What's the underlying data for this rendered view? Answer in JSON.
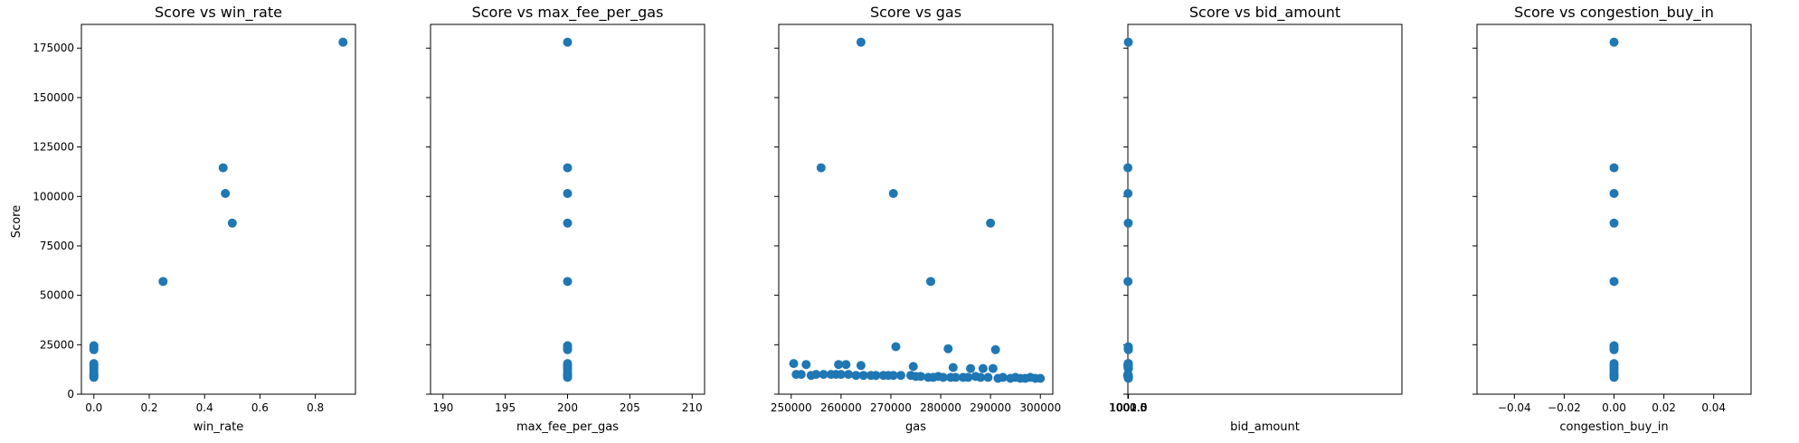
{
  "color": "#1f77b4",
  "ylabel": "Score",
  "yticks": [
    0,
    25000,
    50000,
    75000,
    100000,
    125000,
    150000,
    175000
  ],
  "chart_data": [
    {
      "type": "scatter",
      "title": "Score vs win_rate",
      "xlabel": "win_rate",
      "ylabel": "Score",
      "xlim": [
        -0.045,
        0.945
      ],
      "ylim": [
        0,
        187000
      ],
      "xticks": [
        0.0,
        0.2,
        0.4,
        0.6,
        0.8
      ],
      "xtick_labels": [
        "0.0",
        "0.2",
        "0.4",
        "0.6",
        "0.8"
      ],
      "points": [
        [
          0.9,
          178000
        ],
        [
          0.467,
          114500
        ],
        [
          0.475,
          101500
        ],
        [
          0.5,
          86500
        ],
        [
          0.25,
          57000
        ],
        [
          0.0,
          24500
        ],
        [
          0.0,
          23500
        ],
        [
          0.0,
          22500
        ],
        [
          0.0,
          15500
        ],
        [
          0.0,
          14500
        ],
        [
          0.0,
          13500
        ],
        [
          0.0,
          12500
        ],
        [
          0.0,
          11000
        ],
        [
          0.0,
          10000
        ],
        [
          0.0,
          9500
        ],
        [
          0.0,
          9000
        ],
        [
          0.0,
          8500
        ]
      ]
    },
    {
      "type": "scatter",
      "title": "Score vs max_fee_per_gas",
      "xlabel": "max_fee_per_gas",
      "ylabel": "",
      "xlim": [
        189,
        211
      ],
      "ylim": [
        0,
        187000
      ],
      "xticks": [
        190,
        195,
        200,
        205,
        210
      ],
      "xtick_labels": [
        "190",
        "195",
        "200",
        "205",
        "210"
      ],
      "points": [
        [
          200,
          178000
        ],
        [
          200,
          114500
        ],
        [
          200,
          101500
        ],
        [
          200,
          86500
        ],
        [
          200,
          57000
        ],
        [
          200,
          24500
        ],
        [
          200,
          23500
        ],
        [
          200,
          22500
        ],
        [
          200,
          15500
        ],
        [
          200,
          14500
        ],
        [
          200,
          13500
        ],
        [
          200,
          12500
        ],
        [
          200,
          11000
        ],
        [
          200,
          10000
        ],
        [
          200,
          9500
        ],
        [
          200,
          9000
        ],
        [
          200,
          8500
        ]
      ]
    },
    {
      "type": "scatter",
      "title": "Score vs gas",
      "xlabel": "gas",
      "ylabel": "",
      "xlim": [
        247500,
        302500
      ],
      "ylim": [
        0,
        187000
      ],
      "xticks": [
        250000,
        260000,
        270000,
        280000,
        290000,
        300000
      ],
      "xtick_labels": [
        "250000",
        "260000",
        "270000",
        "280000",
        "290000",
        "300000"
      ],
      "points": [
        [
          264000,
          178000
        ],
        [
          256000,
          114500
        ],
        [
          270500,
          101500
        ],
        [
          290000,
          86500
        ],
        [
          278000,
          57000
        ],
        [
          271000,
          24000
        ],
        [
          281500,
          23000
        ],
        [
          291000,
          22500
        ],
        [
          250500,
          15500
        ],
        [
          253000,
          15000
        ],
        [
          259500,
          15000
        ],
        [
          261000,
          15000
        ],
        [
          264000,
          14500
        ],
        [
          274500,
          14000
        ],
        [
          282500,
          13500
        ],
        [
          286000,
          13000
        ],
        [
          288500,
          13000
        ],
        [
          290500,
          13000
        ],
        [
          251000,
          10000
        ],
        [
          252000,
          10000
        ],
        [
          254000,
          9500
        ],
        [
          255000,
          10000
        ],
        [
          256500,
          10000
        ],
        [
          258000,
          10000
        ],
        [
          259000,
          10000
        ],
        [
          260000,
          10000
        ],
        [
          261500,
          10000
        ],
        [
          263000,
          9500
        ],
        [
          264500,
          9500
        ],
        [
          266000,
          9500
        ],
        [
          267000,
          9500
        ],
        [
          268500,
          9500
        ],
        [
          269500,
          9500
        ],
        [
          270500,
          9500
        ],
        [
          272000,
          9500
        ],
        [
          274000,
          9500
        ],
        [
          275000,
          9000
        ],
        [
          276000,
          9000
        ],
        [
          277500,
          8500
        ],
        [
          278500,
          8500
        ],
        [
          279500,
          9000
        ],
        [
          280500,
          8500
        ],
        [
          282000,
          8500
        ],
        [
          283000,
          8500
        ],
        [
          284500,
          8500
        ],
        [
          285500,
          8500
        ],
        [
          287000,
          9000
        ],
        [
          288000,
          8500
        ],
        [
          289500,
          8500
        ],
        [
          291500,
          8000
        ],
        [
          292500,
          8500
        ],
        [
          294000,
          8000
        ],
        [
          295000,
          8500
        ],
        [
          296000,
          8000
        ],
        [
          297000,
          8000
        ],
        [
          298000,
          8500
        ],
        [
          299000,
          8000
        ],
        [
          300000,
          8000
        ]
      ]
    },
    {
      "type": "scatter",
      "title": "Score vs bid_amount",
      "xlabel": "bid_amount",
      "ylabel": "",
      "xlim": [
        999.9,
        2002.1
      ],
      "ylim": [
        0,
        187000
      ],
      "xticks": [
        1000.0,
        1000.5,
        1001.0,
        1001.5,
        1002.0
      ],
      "xtick_labels": [
        "1000.0",
        "1000.5",
        "1001.0",
        "1001.5",
        "1002.0"
      ],
      "points": [
        [
          1001.58,
          178000
        ],
        [
          1000.03,
          114500
        ],
        [
          1000.52,
          101500
        ],
        [
          1001.18,
          86500
        ],
        [
          1000.32,
          57000
        ],
        [
          1001.43,
          24000
        ],
        [
          1001.68,
          23500
        ],
        [
          1001.25,
          23000
        ],
        [
          1001.7,
          22500
        ],
        [
          1000.04,
          14500
        ],
        [
          1000.08,
          15000
        ],
        [
          1000.8,
          15500
        ],
        [
          1001.3,
          15000
        ],
        [
          1001.36,
          15500
        ],
        [
          1001.53,
          15000
        ],
        [
          1001.72,
          15500
        ],
        [
          1001.9,
          13500
        ],
        [
          1001.98,
          13000
        ],
        [
          1000.18,
          13500
        ],
        [
          1001.24,
          14000
        ],
        [
          999.98,
          9500
        ],
        [
          1000.05,
          10000
        ],
        [
          1000.12,
          9500
        ],
        [
          1000.16,
          10000
        ],
        [
          1000.22,
          9500
        ],
        [
          1000.28,
          9000
        ],
        [
          1000.35,
          10000
        ],
        [
          1000.4,
          9500
        ],
        [
          1000.45,
          9500
        ],
        [
          1000.5,
          9000
        ],
        [
          1000.58,
          9000
        ],
        [
          1000.63,
          9500
        ],
        [
          1000.7,
          9000
        ],
        [
          1000.76,
          9500
        ],
        [
          1000.85,
          9500
        ],
        [
          1000.9,
          9000
        ],
        [
          1000.96,
          9000
        ],
        [
          1001.04,
          9000
        ],
        [
          1001.1,
          8500
        ],
        [
          1001.15,
          9000
        ],
        [
          1001.2,
          8500
        ],
        [
          1001.28,
          9000
        ],
        [
          1001.33,
          9000
        ],
        [
          1001.4,
          8500
        ],
        [
          1001.46,
          9000
        ],
        [
          1001.5,
          8500
        ],
        [
          1001.56,
          9000
        ],
        [
          1001.62,
          9000
        ],
        [
          1001.66,
          8500
        ],
        [
          1001.75,
          8500
        ],
        [
          1001.8,
          9000
        ],
        [
          1001.85,
          8500
        ],
        [
          1001.88,
          8000
        ],
        [
          1001.93,
          8500
        ],
        [
          1001.96,
          9000
        ]
      ]
    },
    {
      "type": "scatter",
      "title": "Score vs congestion_buy_in",
      "xlabel": "congestion_buy_in",
      "ylabel": "",
      "xlim": [
        -0.055,
        0.055
      ],
      "ylim": [
        0,
        187000
      ],
      "xticks": [
        -0.04,
        -0.02,
        0.0,
        0.02,
        0.04
      ],
      "xtick_labels": [
        "−0.04",
        "−0.02",
        "0.00",
        "0.02",
        "0.04"
      ],
      "points": [
        [
          0,
          178000
        ],
        [
          0,
          114500
        ],
        [
          0,
          101500
        ],
        [
          0,
          86500
        ],
        [
          0,
          57000
        ],
        [
          0,
          24500
        ],
        [
          0,
          23500
        ],
        [
          0,
          22500
        ],
        [
          0,
          15500
        ],
        [
          0,
          14500
        ],
        [
          0,
          13500
        ],
        [
          0,
          12500
        ],
        [
          0,
          11000
        ],
        [
          0,
          10000
        ],
        [
          0,
          9500
        ],
        [
          0,
          9000
        ],
        [
          0,
          8500
        ]
      ]
    }
  ]
}
